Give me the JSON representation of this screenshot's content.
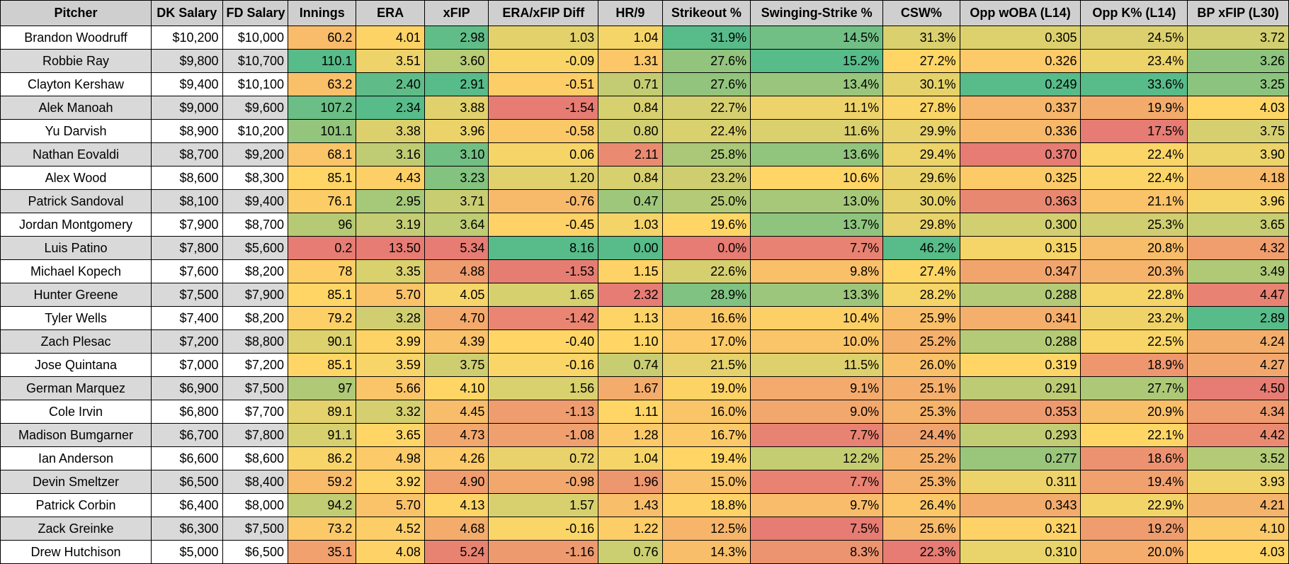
{
  "table": {
    "headers": [
      "Pitcher",
      "DK Salary",
      "FD Salary",
      "Innings",
      "ERA",
      "xFIP",
      "ERA/xFIP Diff",
      "HR/9",
      "Strikeout %",
      "Swinging-Strike %",
      "CSW%",
      "Opp wOBA (L14)",
      "Opp K% (L14)",
      "BP xFIP (L30)"
    ],
    "rows": [
      [
        "Brandon Woodruff",
        "$10,200",
        "$10,000",
        "60.2",
        "4.01",
        "2.98",
        "1.03",
        "1.04",
        "31.9%",
        "14.5%",
        "31.3%",
        "0.305",
        "24.5%",
        "3.72"
      ],
      [
        "Robbie Ray",
        "$9,800",
        "$10,700",
        "110.1",
        "3.51",
        "3.60",
        "-0.09",
        "1.31",
        "27.6%",
        "15.2%",
        "27.2%",
        "0.326",
        "23.4%",
        "3.26"
      ],
      [
        "Clayton Kershaw",
        "$9,400",
        "$10,100",
        "63.2",
        "2.40",
        "2.91",
        "-0.51",
        "0.71",
        "27.6%",
        "13.4%",
        "30.1%",
        "0.249",
        "33.6%",
        "3.25"
      ],
      [
        "Alek Manoah",
        "$9,000",
        "$9,600",
        "107.2",
        "2.34",
        "3.88",
        "-1.54",
        "0.84",
        "22.7%",
        "11.1%",
        "27.8%",
        "0.337",
        "19.9%",
        "4.03"
      ],
      [
        "Yu Darvish",
        "$8,900",
        "$10,200",
        "101.1",
        "3.38",
        "3.96",
        "-0.58",
        "0.80",
        "22.4%",
        "11.6%",
        "29.9%",
        "0.336",
        "17.5%",
        "3.75"
      ],
      [
        "Nathan Eovaldi",
        "$8,700",
        "$9,200",
        "68.1",
        "3.16",
        "3.10",
        "0.06",
        "2.11",
        "25.8%",
        "13.6%",
        "29.4%",
        "0.370",
        "22.4%",
        "3.90"
      ],
      [
        "Alex Wood",
        "$8,600",
        "$8,300",
        "85.1",
        "4.43",
        "3.23",
        "1.20",
        "0.84",
        "23.2%",
        "10.6%",
        "29.6%",
        "0.325",
        "22.4%",
        "4.18"
      ],
      [
        "Patrick Sandoval",
        "$8,100",
        "$9,400",
        "76.1",
        "2.95",
        "3.71",
        "-0.76",
        "0.47",
        "25.0%",
        "13.0%",
        "30.0%",
        "0.363",
        "21.1%",
        "3.96"
      ],
      [
        "Jordan Montgomery",
        "$7,900",
        "$8,700",
        "96",
        "3.19",
        "3.64",
        "-0.45",
        "1.03",
        "19.6%",
        "13.7%",
        "29.8%",
        "0.300",
        "25.3%",
        "3.65"
      ],
      [
        "Luis Patino",
        "$7,800",
        "$5,600",
        "0.2",
        "13.50",
        "5.34",
        "8.16",
        "0.00",
        "0.0%",
        "7.7%",
        "46.2%",
        "0.315",
        "20.8%",
        "4.32"
      ],
      [
        "Michael Kopech",
        "$7,600",
        "$8,200",
        "78",
        "3.35",
        "4.88",
        "-1.53",
        "1.15",
        "22.6%",
        "9.8%",
        "27.4%",
        "0.347",
        "20.3%",
        "3.49"
      ],
      [
        "Hunter Greene",
        "$7,500",
        "$7,900",
        "85.1",
        "5.70",
        "4.05",
        "1.65",
        "2.32",
        "28.9%",
        "13.3%",
        "28.2%",
        "0.288",
        "22.8%",
        "4.47"
      ],
      [
        "Tyler Wells",
        "$7,400",
        "$8,200",
        "79.2",
        "3.28",
        "4.70",
        "-1.42",
        "1.13",
        "16.6%",
        "10.4%",
        "25.9%",
        "0.341",
        "23.2%",
        "2.89"
      ],
      [
        "Zach Plesac",
        "$7,200",
        "$8,800",
        "90.1",
        "3.99",
        "4.39",
        "-0.40",
        "1.10",
        "17.0%",
        "10.0%",
        "25.2%",
        "0.288",
        "22.5%",
        "4.24"
      ],
      [
        "Jose Quintana",
        "$7,000",
        "$7,200",
        "85.1",
        "3.59",
        "3.75",
        "-0.16",
        "0.74",
        "21.5%",
        "11.5%",
        "26.0%",
        "0.319",
        "18.9%",
        "4.27"
      ],
      [
        "German Marquez",
        "$6,900",
        "$7,500",
        "97",
        "5.66",
        "4.10",
        "1.56",
        "1.67",
        "19.0%",
        "9.1%",
        "25.1%",
        "0.291",
        "27.7%",
        "4.50"
      ],
      [
        "Cole Irvin",
        "$6,800",
        "$7,700",
        "89.1",
        "3.32",
        "4.45",
        "-1.13",
        "1.11",
        "16.0%",
        "9.0%",
        "25.3%",
        "0.353",
        "20.9%",
        "4.34"
      ],
      [
        "Madison Bumgarner",
        "$6,700",
        "$7,800",
        "91.1",
        "3.65",
        "4.73",
        "-1.08",
        "1.28",
        "16.7%",
        "7.7%",
        "24.4%",
        "0.293",
        "22.1%",
        "4.42"
      ],
      [
        "Ian Anderson",
        "$6,600",
        "$8,600",
        "86.2",
        "4.98",
        "4.26",
        "0.72",
        "1.04",
        "19.4%",
        "12.2%",
        "25.2%",
        "0.277",
        "18.6%",
        "3.52"
      ],
      [
        "Devin Smeltzer",
        "$6,500",
        "$8,400",
        "59.2",
        "3.92",
        "4.90",
        "-0.98",
        "1.96",
        "15.0%",
        "7.7%",
        "25.3%",
        "0.311",
        "19.4%",
        "3.93"
      ],
      [
        "Patrick Corbin",
        "$6,400",
        "$8,000",
        "94.2",
        "5.70",
        "4.13",
        "1.57",
        "1.43",
        "18.8%",
        "9.7%",
        "26.4%",
        "0.343",
        "22.9%",
        "4.21"
      ],
      [
        "Zack Greinke",
        "$6,300",
        "$7,500",
        "73.2",
        "4.52",
        "4.68",
        "-0.16",
        "1.22",
        "12.5%",
        "7.5%",
        "25.6%",
        "0.321",
        "19.2%",
        "4.10"
      ],
      [
        "Drew Hutchison",
        "$5,000",
        "$6,500",
        "35.1",
        "4.08",
        "5.24",
        "-1.16",
        "0.76",
        "14.3%",
        "8.3%",
        "22.3%",
        "0.310",
        "20.0%",
        "4.03"
      ]
    ]
  },
  "colors": {
    "high_good": "#57bb8a",
    "mid": "#ffd666",
    "low_bad": "#e67c73",
    "header_bg": "#cfcfcf",
    "alt_row_bg": "#d9d9d9"
  }
}
